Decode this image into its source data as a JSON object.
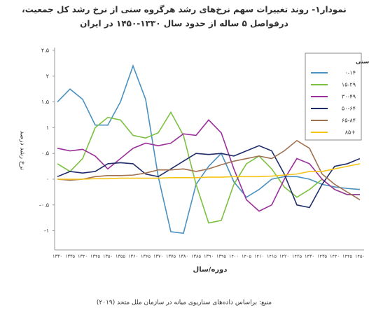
{
  "chart_data": {
    "type": "line",
    "title": "نمودار۱- روند تغییرات سهم نرخ‌های رشد هرگروه سنی از نرخ رشد کل جمعیت،",
    "subtitle": "درفواصل ۵ ساله از حدود سال ۱۳۳۰-۱۴۵۰ در ایران",
    "y_label": "نرخ رشد درصد",
    "x_label": "دوره/سال",
    "source": "منبع: براساس داده‌های سناریوی میانه در سازمان ملل متحد (۲۰۱۹)",
    "legend_title": "گروه های سنی",
    "categories": [
      "۱۳۳۰",
      "۱۳۳۵",
      "۱۳۴۰",
      "۱۳۴۵",
      "۱۳۵۰",
      "۱۳۵۵",
      "۱۳۶۰",
      "۱۳۶۵",
      "۱۳۷۰",
      "۱۳۷۵",
      "۱۳۸۰",
      "۱۳۸۵",
      "۱۳۹۰",
      "۱۳۹۵",
      "۱۴۰۰",
      "۱۴۰۵",
      "۱۴۱۰",
      "۱۴۱۵",
      "۱۴۲۰",
      "۱۴۲۵",
      "۱۴۳۰",
      "۱۴۳۵",
      "۱۴۴۰",
      "۱۴۴۵",
      "۱۴۵۰"
    ],
    "series": [
      {
        "name": "۰-۱۴",
        "color": "#4a90c0",
        "values": [
          1.5,
          1.75,
          1.55,
          1.05,
          1.05,
          1.5,
          2.2,
          1.55,
          0.05,
          -1.02,
          -1.05,
          -0.1,
          0.25,
          0.5,
          -0.05,
          -0.35,
          -0.2,
          0,
          0.05,
          0.05,
          0,
          -0.1,
          -0.15,
          -0.18,
          -0.2
        ]
      },
      {
        "name": "۱۵-۲۹",
        "color": "#7dc142",
        "values": [
          0.3,
          0.15,
          0.4,
          1.0,
          1.2,
          1.15,
          0.85,
          0.8,
          0.9,
          1.3,
          0.85,
          -0.1,
          -0.85,
          -0.8,
          -0.1,
          0.3,
          0.45,
          0.2,
          -0.15,
          -0.35,
          -0.2,
          0,
          -0.2,
          -0.3,
          -0.3
        ]
      },
      {
        "name": "۳۰-۴۹",
        "color": "#9b2f9b",
        "values": [
          0.6,
          0.55,
          0.58,
          0.45,
          0.2,
          0.4,
          0.6,
          0.7,
          0.65,
          0.7,
          0.88,
          0.85,
          1.15,
          0.9,
          0.2,
          -0.4,
          -0.62,
          -0.5,
          0,
          0.4,
          0.3,
          0,
          -0.2,
          -0.3,
          -0.3
        ]
      },
      {
        "name": "۵۰-۶۴",
        "color": "#1f2d6b",
        "values": [
          0.05,
          0.15,
          0.12,
          0.15,
          0.3,
          0.32,
          0.3,
          0.1,
          0.05,
          0.2,
          0.35,
          0.5,
          0.48,
          0.5,
          0.45,
          0.55,
          0.65,
          0.55,
          0.1,
          -0.5,
          -0.55,
          -0.1,
          0.25,
          0.3,
          0.4
        ]
      },
      {
        "name": "۶۵-۸۴",
        "color": "#a0714f",
        "values": [
          0,
          -0.02,
          0,
          0.05,
          0.07,
          0.07,
          0.08,
          0.12,
          0.18,
          0.18,
          0.2,
          0.15,
          0.2,
          0.28,
          0.35,
          0.4,
          0.45,
          0.4,
          0.55,
          0.75,
          0.6,
          0.1,
          -0.1,
          -0.25,
          -0.4
        ]
      },
      {
        "name": "۸۵+",
        "color": "#f5c518",
        "values": [
          0,
          0,
          0,
          0.01,
          0.01,
          0.02,
          0.02,
          0.02,
          0.02,
          0.03,
          0.03,
          0.03,
          0.04,
          0.04,
          0.05,
          0.05,
          0.05,
          0.06,
          0.08,
          0.1,
          0.15,
          0.15,
          0.2,
          0.25,
          0.3
        ]
      }
    ],
    "ylim": [
      -1.2,
      2.5
    ],
    "yticks": [
      {
        "value": 2.5,
        "label": "۲.۵"
      },
      {
        "value": 2,
        "label": "۲"
      },
      {
        "value": 1.5,
        "label": "۱.۵"
      },
      {
        "value": 1,
        "label": "۱"
      },
      {
        "value": 0.5,
        "label": "۰.۵"
      },
      {
        "value": 0,
        "label": "۰"
      },
      {
        "value": -0.5,
        "label": "-۰.۵"
      },
      {
        "value": -1,
        "label": "-۱"
      }
    ]
  }
}
